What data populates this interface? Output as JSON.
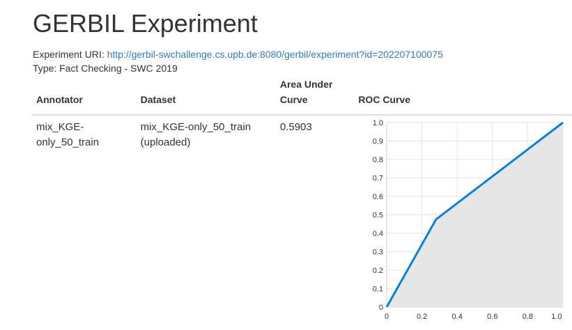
{
  "page": {
    "title": "GERBIL Experiment",
    "uri_label": "Experiment URI:",
    "uri_link": "http://gerbil-swchallenge.cs.upb.de:8080/gerbil/experiment?id=202207100075",
    "type_line": "Type: Fact Checking - SWC 2019"
  },
  "table": {
    "headers": {
      "annotator": "Annotator",
      "dataset": "Dataset",
      "auc_line1": "Area Under",
      "auc_line2": "Curve",
      "roc": "ROC Curve"
    },
    "row": {
      "annotator_line1": "mix_KGE-",
      "annotator_line2": "only_50_train",
      "dataset_line1": "mix_KGE-only_50_train",
      "dataset_line2": "(uploaded)",
      "auc": "0.5903"
    }
  },
  "chart_data": {
    "type": "area",
    "x": [
      0,
      0.28,
      1.0
    ],
    "y": [
      0,
      0.475,
      1.0
    ],
    "xlim": [
      0,
      1
    ],
    "ylim": [
      0,
      1
    ],
    "xticks": [
      "0",
      "0.2",
      "0.4",
      "0.6",
      "0.8",
      "1.0"
    ],
    "yticks": [
      "0",
      "0.1",
      "0.2",
      "0.3",
      "0.4",
      "0.5",
      "0.6",
      "0.7",
      "0.8",
      "0.9",
      "1.0"
    ],
    "grid": true,
    "line_color": "#0a7fd9",
    "fill_color": "#e6e6e6"
  }
}
